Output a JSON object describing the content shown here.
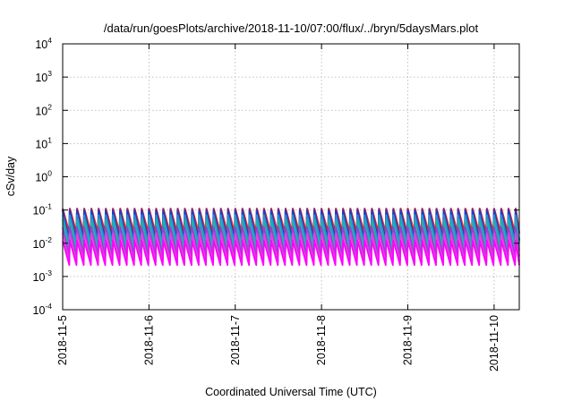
{
  "chart_data": {
    "type": "line",
    "title": "/data/run/goesPlots/archive/2018-11-10/07:00/flux/../bryn/5daysMars.plot",
    "xlabel": "Coordinated Universal Time (UTC)",
    "ylabel": "cSv/day",
    "yscale": "log",
    "ylim": [
      0.0001,
      10000
    ],
    "y_ticks": [
      {
        "base": "10",
        "exp": "-4",
        "value": 0.0001
      },
      {
        "base": "10",
        "exp": "-3",
        "value": 0.001
      },
      {
        "base": "10",
        "exp": "-2",
        "value": 0.01
      },
      {
        "base": "10",
        "exp": "-1",
        "value": 0.1
      },
      {
        "base": "10",
        "exp": "0",
        "value": 1
      },
      {
        "base": "10",
        "exp": "1",
        "value": 10
      },
      {
        "base": "10",
        "exp": "2",
        "value": 100
      },
      {
        "base": "10",
        "exp": "3",
        "value": 1000
      },
      {
        "base": "10",
        "exp": "4",
        "value": 10000
      }
    ],
    "xlim": [
      "2018-11-05T00:00",
      "2018-11-10T07:00"
    ],
    "x_ticks": [
      "2018-11-5",
      "2018-11-6",
      "2018-11-7",
      "2018-11-8",
      "2018-11-9",
      "2018-11-10"
    ],
    "grid": true,
    "pattern": "periodic sawtooth, period ≈ 2 h (≈ 12 cycles per day)",
    "series": [
      {
        "color": "#ff2020",
        "peak": 0.11,
        "trough": 0.02
      },
      {
        "color": "#1f3fbf",
        "peak": 0.1,
        "trough": 0.012
      },
      {
        "color": "#2a8fd0",
        "peak": 0.07,
        "trough": 0.01
      },
      {
        "color": "#20b0b0",
        "peak": 0.05,
        "trough": 0.006
      },
      {
        "color": "#9a3fd0",
        "peak": 0.03,
        "trough": 0.004
      },
      {
        "color": "#e040e0",
        "peak": 0.02,
        "trough": 0.0028
      },
      {
        "color": "#ff00ff",
        "peak": 0.012,
        "trough": 0.0022
      }
    ]
  }
}
